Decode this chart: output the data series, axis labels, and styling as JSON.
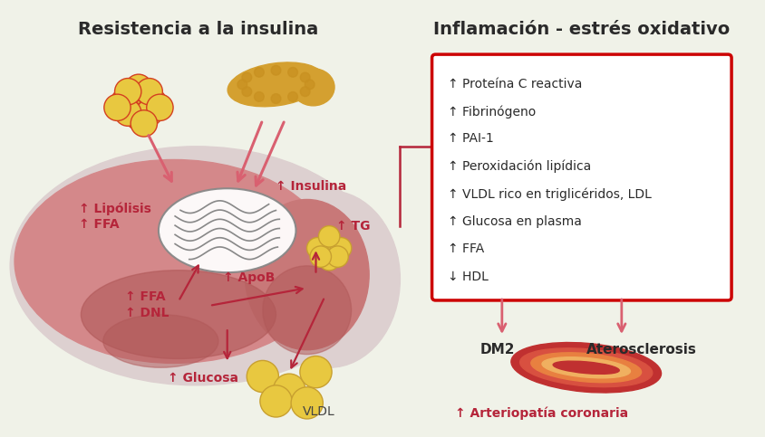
{
  "title_left": "Resistencia a la insulina",
  "title_right": "Inflamación - estrés oxidativo",
  "box_items": [
    "↑ Proteína C reactiva",
    "↑ Fibrinógeno",
    "↑ PAI-1",
    "↑ Peroxidación lipídica",
    "↑ VLDL rico en triglicéridos, LDL",
    "↑ Glucosa en plasma",
    "↑ FFA",
    "↓ HDL"
  ],
  "bg_color": "#f0f2e8",
  "liver_outer_color": "#ddd0d0",
  "liver_main_color": "#d4888a",
  "liver_lobe_color": "#c87070",
  "liver_right_color": "#c87878",
  "liver_dark_color": "#b05858",
  "arrow_color": "#b5253a",
  "arrow_light_color": "#d96070",
  "box_border_color": "#cc0000",
  "fat_color": "#e8c840",
  "fat_outline": "#c8a030",
  "fat_outline2": "#d44020",
  "pancreas_color": "#d4a030",
  "pancreas_dot": "#c89020",
  "mito_color": "#888888",
  "artery_colors": [
    "#c83030",
    "#d86050",
    "#e89050",
    "#f0b070",
    "#c03020"
  ]
}
